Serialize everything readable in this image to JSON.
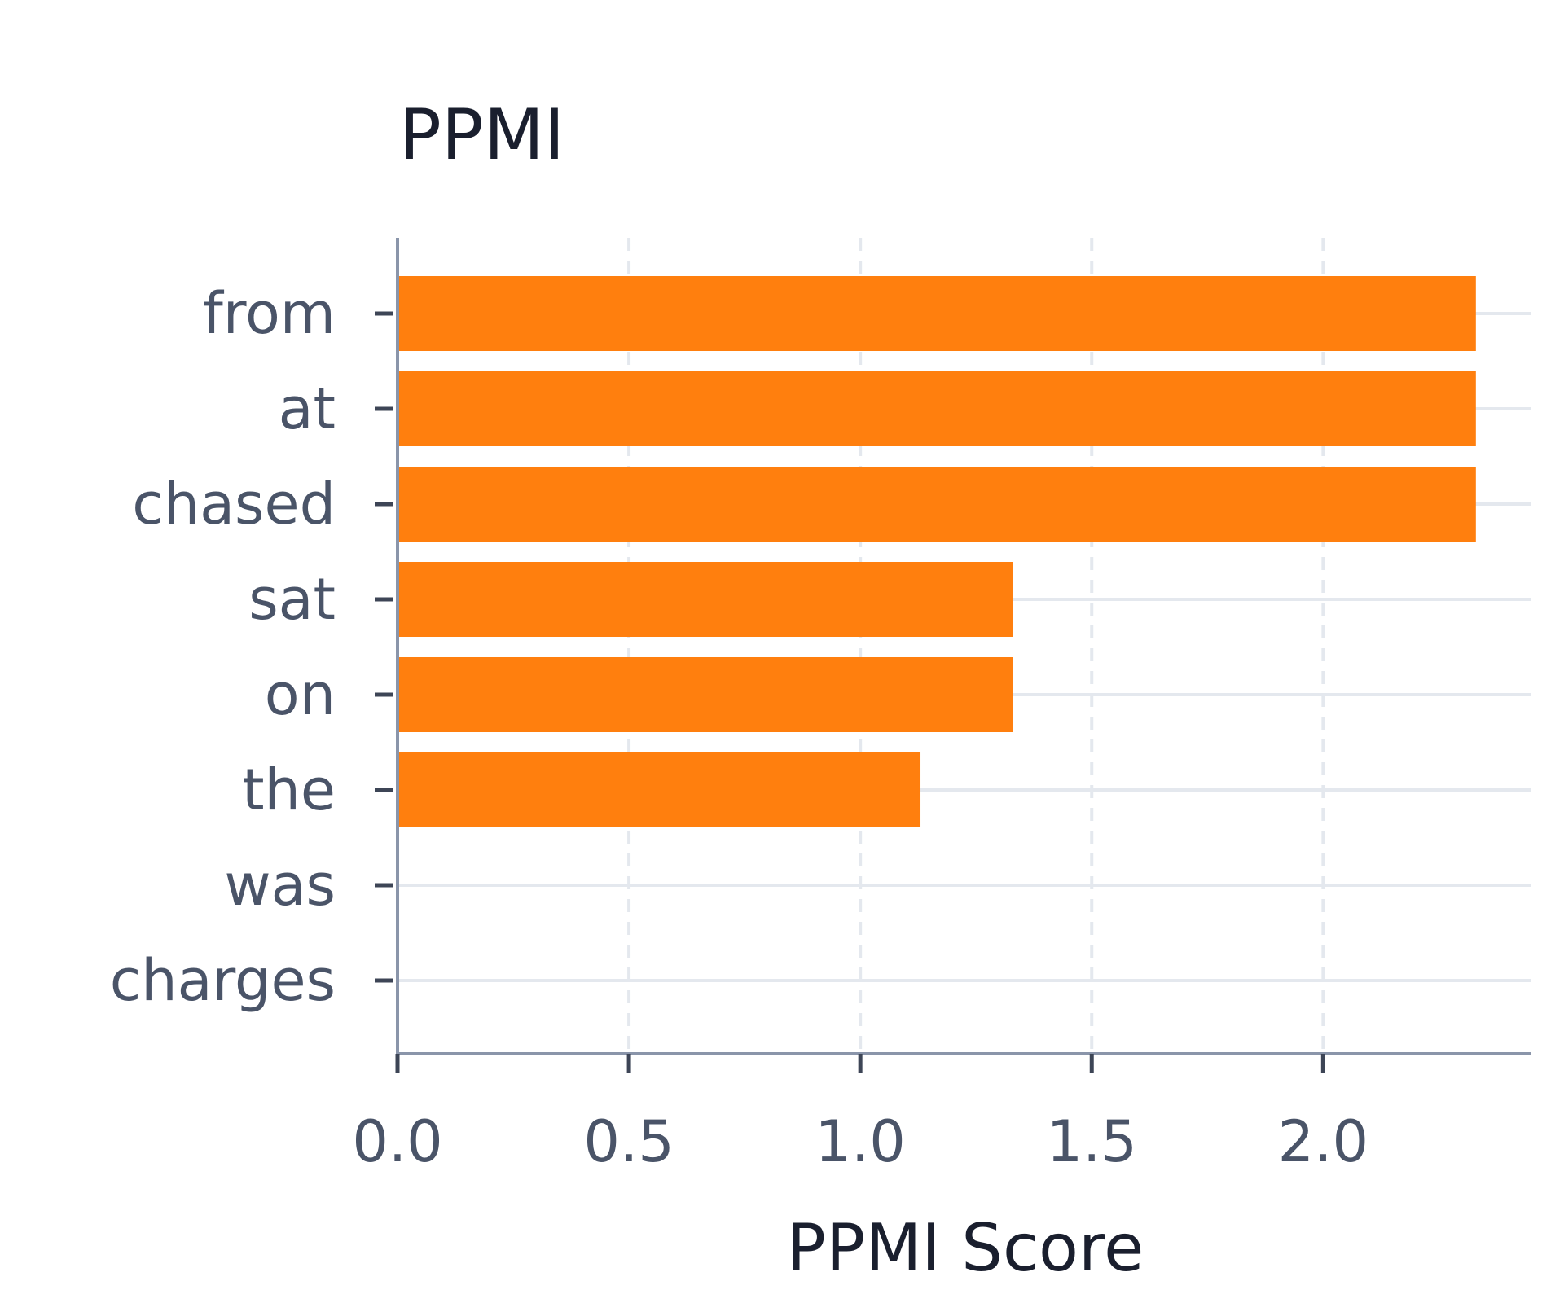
{
  "chart_data": {
    "type": "bar",
    "orientation": "horizontal",
    "title": "PPMI",
    "xlabel": "PPMI Score",
    "ylabel": "",
    "categories": [
      "from",
      "at",
      "chased",
      "sat",
      "on",
      "the",
      "was",
      "charges"
    ],
    "values": [
      2.33,
      2.33,
      2.33,
      1.33,
      1.33,
      1.13,
      0,
      0
    ],
    "xlim": [
      0,
      2.45
    ],
    "xticks": [
      0.0,
      0.5,
      1.0,
      1.5,
      2.0
    ],
    "xtick_labels": [
      "0.0",
      "0.5",
      "1.0",
      "1.5",
      "2.0"
    ],
    "grid": true,
    "bar_color": "#ff7f0e",
    "axis_color": "#8a95aa",
    "grid_color": "#e4e8ee"
  }
}
